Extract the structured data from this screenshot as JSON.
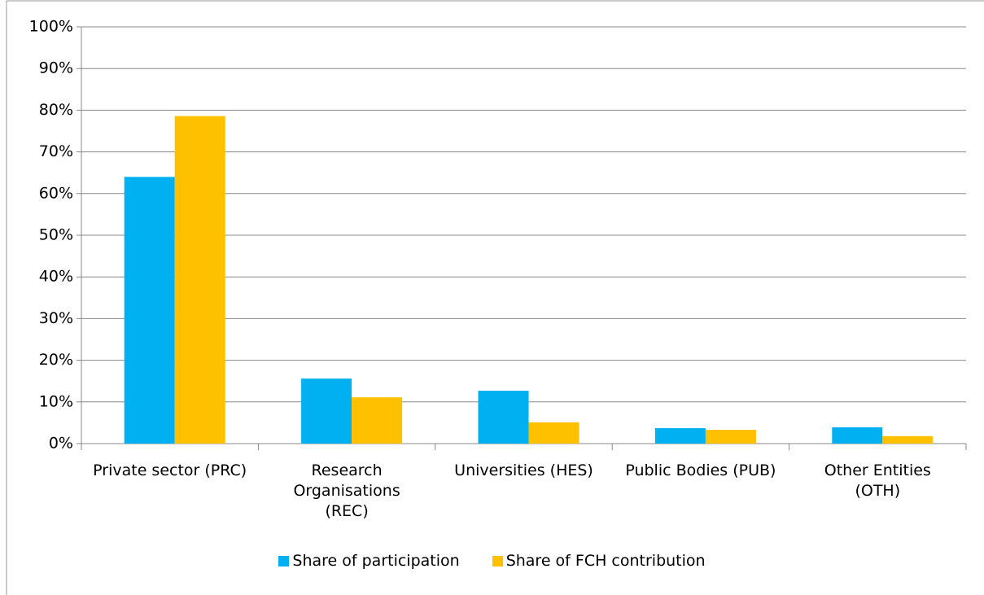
{
  "chart_data": {
    "type": "bar",
    "categories": [
      "Private sector (PRC)",
      "Research Organisations (REC)",
      "Universities (HES)",
      "Public Bodies (PUB)",
      "Other Entities (OTH)"
    ],
    "series": [
      {
        "name": "Share of participation",
        "color": "#00b0f0",
        "values": [
          64,
          15.6,
          12.7,
          3.7,
          3.9
        ]
      },
      {
        "name": "Share of FCH contribution",
        "color": "#ffc000",
        "values": [
          78.6,
          11.1,
          5.1,
          3.3,
          1.8
        ]
      }
    ],
    "ylim": [
      0,
      100
    ],
    "yticks": [
      {
        "value": 0,
        "label": "0%"
      },
      {
        "value": 10,
        "label": "10%"
      },
      {
        "value": 20,
        "label": "20%"
      },
      {
        "value": 30,
        "label": "30%"
      },
      {
        "value": 40,
        "label": "40%"
      },
      {
        "value": 50,
        "label": "50%"
      },
      {
        "value": 60,
        "label": "60%"
      },
      {
        "value": 70,
        "label": "70%"
      },
      {
        "value": 80,
        "label": "80%"
      },
      {
        "value": 90,
        "label": "90%"
      },
      {
        "value": 100,
        "label": "100%"
      }
    ],
    "grid": true,
    "legend": "bottom"
  }
}
